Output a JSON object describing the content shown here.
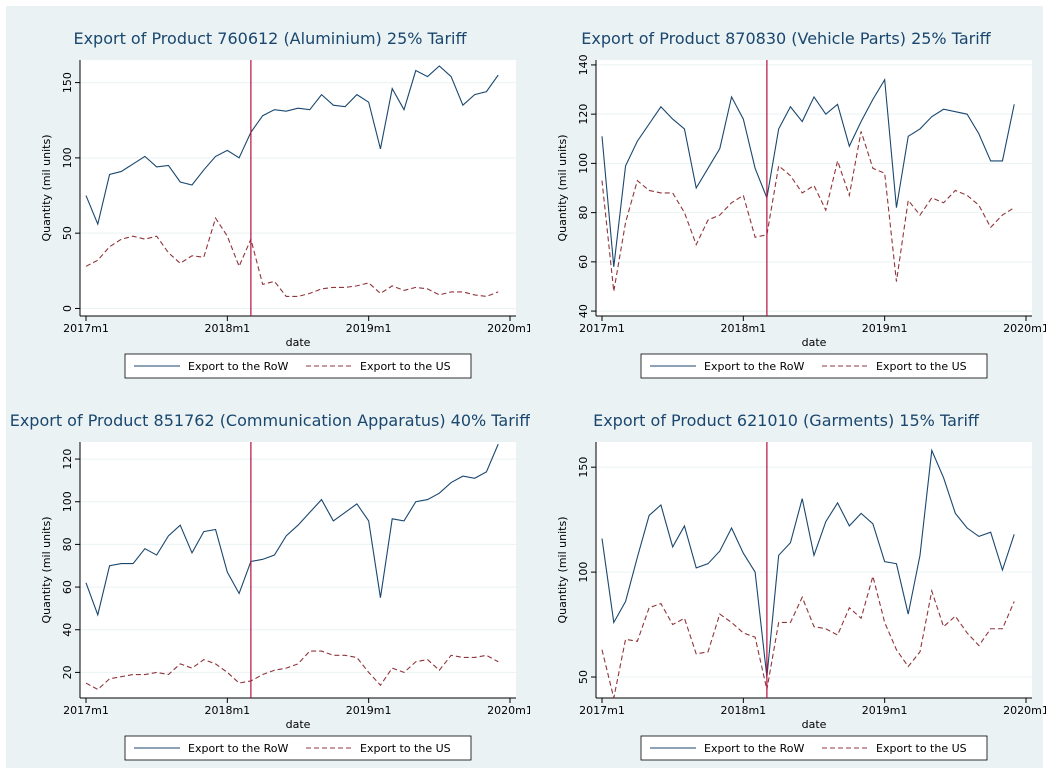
{
  "chart_data": [
    {
      "type": "line",
      "title": "Export of Product 760612 (Aluminium) 25% Tariff",
      "xlabel": "date",
      "ylabel": "Quantity (mil units)",
      "x": [
        "2017m1",
        "2017m2",
        "2017m3",
        "2017m4",
        "2017m5",
        "2017m6",
        "2017m7",
        "2017m8",
        "2017m9",
        "2017m10",
        "2017m11",
        "2017m12",
        "2018m1",
        "2018m2",
        "2018m3",
        "2018m4",
        "2018m5",
        "2018m6",
        "2018m7",
        "2018m8",
        "2018m9",
        "2018m10",
        "2018m11",
        "2018m12",
        "2019m1",
        "2019m2",
        "2019m3",
        "2019m4",
        "2019m5",
        "2019m6",
        "2019m7",
        "2019m8",
        "2019m9",
        "2019m10",
        "2019m11",
        "2019m12"
      ],
      "xlim": [
        "2017m1",
        "2020m1"
      ],
      "xticks": [
        "2017m1",
        "2018m1",
        "2019m1",
        "2020m1"
      ],
      "ylim": [
        -5,
        165
      ],
      "yticks": [
        0,
        50,
        100,
        150
      ],
      "grid": true,
      "event_x": "2018m3",
      "event_color": "#b5123e",
      "series": [
        {
          "name": "Export to the RoW",
          "color": "#1a476f",
          "style": "solid",
          "values": [
            75,
            56,
            89,
            91,
            96,
            101,
            94,
            95,
            84,
            82,
            92,
            101,
            105,
            100,
            117,
            128,
            132,
            131,
            133,
            132,
            142,
            135,
            134,
            142,
            137,
            106,
            146,
            132,
            158,
            154,
            161,
            154,
            135,
            142,
            144,
            155
          ]
        },
        {
          "name": "Export to the US",
          "color": "#90353b",
          "style": "dashed",
          "values": [
            28,
            32,
            41,
            46,
            48,
            46,
            48,
            37,
            30,
            35,
            34,
            60,
            48,
            28,
            46,
            16,
            18,
            8,
            8,
            10,
            13,
            14,
            14,
            15,
            17,
            10,
            15,
            12,
            14,
            13,
            9,
            11,
            11,
            9,
            8,
            11
          ]
        }
      ]
    },
    {
      "type": "line",
      "title": "Export of Product 870830 (Vehicle Parts) 25% Tariff",
      "xlabel": "date",
      "ylabel": "Quantity (mil units)",
      "x": [
        "2017m1",
        "2017m2",
        "2017m3",
        "2017m4",
        "2017m5",
        "2017m6",
        "2017m7",
        "2017m8",
        "2017m9",
        "2017m10",
        "2017m11",
        "2017m12",
        "2018m1",
        "2018m2",
        "2018m3",
        "2018m4",
        "2018m5",
        "2018m6",
        "2018m7",
        "2018m8",
        "2018m9",
        "2018m10",
        "2018m11",
        "2018m12",
        "2019m1",
        "2019m2",
        "2019m3",
        "2019m4",
        "2019m5",
        "2019m6",
        "2019m7",
        "2019m8",
        "2019m9",
        "2019m10",
        "2019m11",
        "2019m12"
      ],
      "xlim": [
        "2017m1",
        "2020m1"
      ],
      "xticks": [
        "2017m1",
        "2018m1",
        "2019m1",
        "2020m1"
      ],
      "ylim": [
        38,
        142
      ],
      "yticks": [
        40,
        60,
        80,
        100,
        120,
        140
      ],
      "grid": true,
      "event_x": "2018m3",
      "event_color": "#b5123e",
      "series": [
        {
          "name": "Export to the RoW",
          "color": "#1a476f",
          "style": "solid",
          "values": [
            111,
            58,
            99,
            109,
            116,
            123,
            118,
            114,
            90,
            98,
            106,
            127,
            118,
            98,
            86,
            114,
            123,
            117,
            127,
            120,
            124,
            107,
            117,
            126,
            134,
            82,
            111,
            114,
            119,
            122,
            121,
            120,
            112,
            101,
            101,
            124
          ]
        },
        {
          "name": "Export to the US",
          "color": "#90353b",
          "style": "dashed",
          "values": [
            93,
            48,
            76,
            93,
            89,
            88,
            88,
            80,
            67,
            77,
            79,
            84,
            87,
            70,
            71,
            99,
            95,
            88,
            91,
            81,
            101,
            87,
            113,
            98,
            96,
            52,
            85,
            79,
            86,
            84,
            89,
            87,
            83,
            74,
            79,
            82
          ]
        }
      ]
    },
    {
      "type": "line",
      "title": "Export of Product 851762 (Communication Apparatus) 40% Tariff",
      "xlabel": "date",
      "ylabel": "Quantity (mil units)",
      "x": [
        "2017m1",
        "2017m2",
        "2017m3",
        "2017m4",
        "2017m5",
        "2017m6",
        "2017m7",
        "2017m8",
        "2017m9",
        "2017m10",
        "2017m11",
        "2017m12",
        "2018m1",
        "2018m2",
        "2018m3",
        "2018m4",
        "2018m5",
        "2018m6",
        "2018m7",
        "2018m8",
        "2018m9",
        "2018m10",
        "2018m11",
        "2018m12",
        "2019m1",
        "2019m2",
        "2019m3",
        "2019m4",
        "2019m5",
        "2019m6",
        "2019m7",
        "2019m8",
        "2019m9",
        "2019m10",
        "2019m11",
        "2019m12"
      ],
      "xlim": [
        "2017m1",
        "2020m1"
      ],
      "xticks": [
        "2017m1",
        "2018m1",
        "2019m1",
        "2020m1"
      ],
      "ylim": [
        8,
        128
      ],
      "yticks": [
        20,
        40,
        60,
        80,
        100,
        120
      ],
      "grid": true,
      "event_x": "2018m3",
      "event_color": "#b5123e",
      "series": [
        {
          "name": "Export to the RoW",
          "color": "#1a476f",
          "style": "solid",
          "values": [
            62,
            47,
            70,
            71,
            71,
            78,
            75,
            84,
            89,
            76,
            86,
            87,
            67,
            57,
            72,
            73,
            75,
            84,
            89,
            95,
            101,
            91,
            95,
            99,
            91,
            55,
            92,
            91,
            100,
            101,
            104,
            109,
            112,
            111,
            114,
            127
          ]
        },
        {
          "name": "Export to the US",
          "color": "#90353b",
          "style": "dashed",
          "values": [
            15,
            12,
            17,
            18,
            19,
            19,
            20,
            19,
            24,
            22,
            26,
            24,
            20,
            15,
            16,
            19,
            21,
            22,
            24,
            30,
            30,
            28,
            28,
            27,
            20,
            14,
            22,
            20,
            25,
            26,
            21,
            28,
            27,
            27,
            28,
            25
          ]
        }
      ]
    },
    {
      "type": "line",
      "title": "Export of Product 621010 (Garments) 15% Tariff",
      "xlabel": "date",
      "ylabel": "Quantity (mil units)",
      "x": [
        "2017m1",
        "2017m2",
        "2017m3",
        "2017m4",
        "2017m5",
        "2017m6",
        "2017m7",
        "2017m8",
        "2017m9",
        "2017m10",
        "2017m11",
        "2017m12",
        "2018m1",
        "2018m2",
        "2018m3",
        "2018m4",
        "2018m5",
        "2018m6",
        "2018m7",
        "2018m8",
        "2018m9",
        "2018m10",
        "2018m11",
        "2018m12",
        "2019m1",
        "2019m2",
        "2019m3",
        "2019m4",
        "2019m5",
        "2019m6",
        "2019m7",
        "2019m8",
        "2019m9",
        "2019m10",
        "2019m11",
        "2019m12"
      ],
      "xlim": [
        "2017m1",
        "2020m1"
      ],
      "xticks": [
        "2017m1",
        "2018m1",
        "2019m1",
        "2020m1"
      ],
      "ylim": [
        40,
        162
      ],
      "yticks": [
        50,
        100,
        150
      ],
      "grid": true,
      "event_x": "2018m3",
      "event_color": "#b5123e",
      "series": [
        {
          "name": "Export to the RoW",
          "color": "#1a476f",
          "style": "solid",
          "values": [
            116,
            76,
            86,
            107,
            127,
            132,
            112,
            122,
            102,
            104,
            110,
            121,
            109,
            100,
            50,
            108,
            114,
            135,
            108,
            124,
            133,
            122,
            128,
            123,
            105,
            104,
            80,
            108,
            158,
            145,
            128,
            121,
            117,
            119,
            101,
            118
          ]
        },
        {
          "name": "Export to the US",
          "color": "#90353b",
          "style": "dashed",
          "values": [
            63,
            40,
            68,
            67,
            83,
            85,
            75,
            78,
            61,
            62,
            80,
            76,
            71,
            69,
            44,
            76,
            76,
            88,
            74,
            73,
            70,
            83,
            78,
            98,
            76,
            63,
            55,
            62,
            91,
            74,
            79,
            71,
            65,
            73,
            73,
            86
          ]
        }
      ]
    }
  ]
}
